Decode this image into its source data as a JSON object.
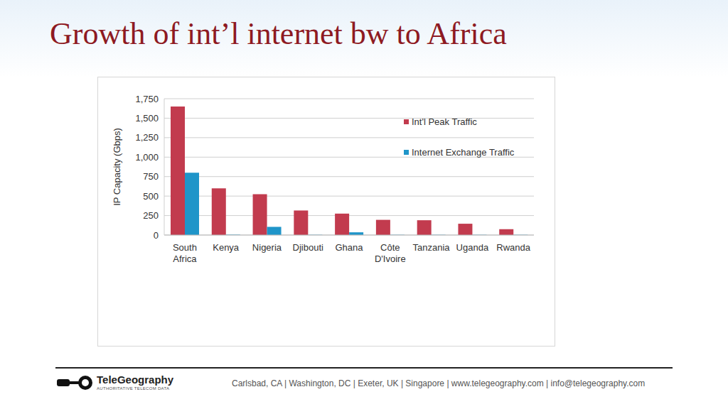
{
  "chart_data": {
    "type": "bar",
    "title": "Growth of int’l internet bw to Africa",
    "y_label": "IP Capacity (Gbps)",
    "categories": [
      "South Africa",
      "Kenya",
      "Nigeria",
      "Djibouti",
      "Ghana",
      "Côte D'Ivoire",
      "Tanzania",
      "Uganda",
      "Rwanda"
    ],
    "series": [
      {
        "name": "Int'l Peak Traffic",
        "color": "#c23b4e",
        "values": [
          1650,
          600,
          525,
          315,
          275,
          195,
          190,
          145,
          75
        ]
      },
      {
        "name": "Internet Exchange Traffic",
        "color": "#1f95c9",
        "values": [
          800,
          5,
          105,
          3,
          35,
          3,
          3,
          3,
          3
        ]
      }
    ],
    "ylim": [
      0,
      1750
    ],
    "yticks": [
      0,
      250,
      500,
      750,
      {
        "value": 1000,
        "label": "1,000"
      },
      {
        "value": 1250,
        "label": "1,250"
      },
      {
        "value": 1500,
        "label": "1,500"
      },
      {
        "value": 1750,
        "label": "1,750"
      }
    ],
    "grid": true,
    "legend": "upper right"
  },
  "footer": {
    "logo": "TeleGeography",
    "tagline": "AUTHORITATIVE TELECOM DATA",
    "text": "Carlsbad, CA | Washington, DC | Exeter, UK | Singapore | www.telegeography.com | info@telegeography.com"
  }
}
